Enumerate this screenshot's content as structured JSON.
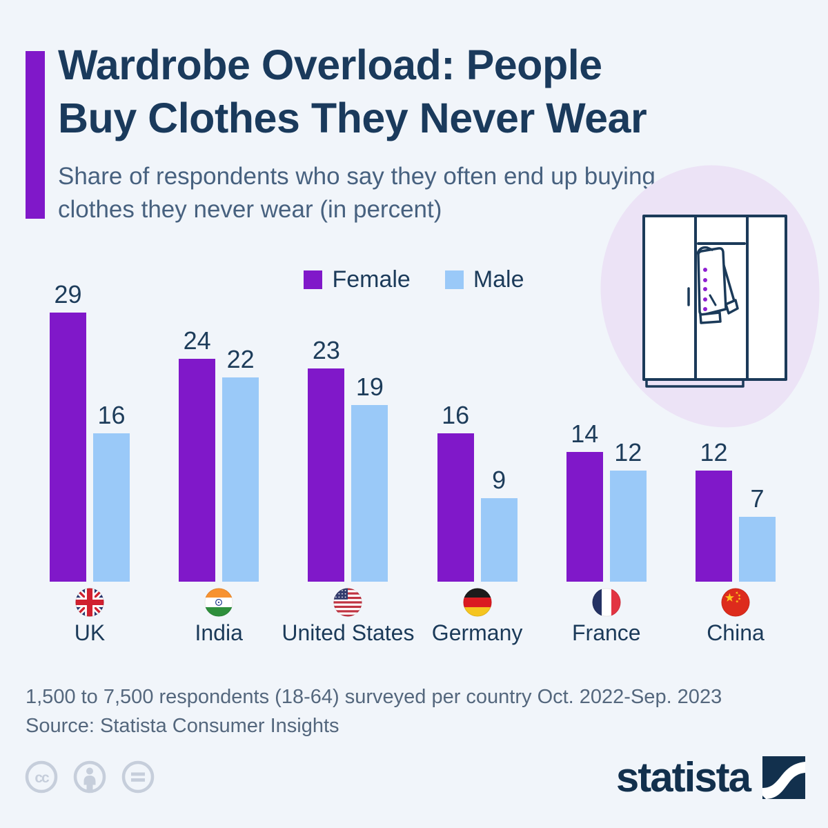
{
  "header": {
    "title_line1": "Wardrobe Overload: People",
    "title_line2": "Buy Clothes They Never Wear",
    "subtitle": "Share of respondents who say they often end up buying clothes they never wear (in percent)",
    "accent_color": "#8018c9"
  },
  "chart_data": {
    "type": "bar",
    "title": "Wardrobe Overload: People Buy Clothes They Never Wear",
    "subtitle": "Share of respondents who say they often end up buying clothes they never wear (in percent)",
    "categories": [
      "UK",
      "India",
      "United States",
      "Germany",
      "France",
      "China"
    ],
    "category_flags": [
      "uk",
      "in",
      "us",
      "de",
      "fr",
      "cn"
    ],
    "series": [
      {
        "name": "Female",
        "color": "#8018c9",
        "values": [
          29,
          24,
          23,
          16,
          14,
          12
        ]
      },
      {
        "name": "Male",
        "color": "#9ac9f8",
        "values": [
          16,
          22,
          19,
          9,
          12,
          7
        ]
      }
    ],
    "ylim": [
      0,
      31
    ],
    "grid": false,
    "value_labels": true,
    "legend_position": "top-center",
    "xlabel": "",
    "ylabel": ""
  },
  "footer": {
    "note": "1,500 to 7,500 respondents (18-64) surveyed per country Oct. 2022-Sep. 2023",
    "source": "Source: Statista Consumer Insights",
    "cc_icons": [
      "cc-icon",
      "cc-by-person-icon",
      "cc-nd-equals-icon"
    ],
    "brand": "statista"
  },
  "colors": {
    "background": "#f1f5fa",
    "female_purple": "#8018c9",
    "male_blue": "#9ac9f8",
    "title_navy": "#1a3a5c",
    "subtitle_slate": "#47617f",
    "footer_gray": "#54677d",
    "cc_gray": "#c6cedb",
    "blob_lavender": "#ece3f6",
    "illustration_stroke": "#1b3a59"
  }
}
